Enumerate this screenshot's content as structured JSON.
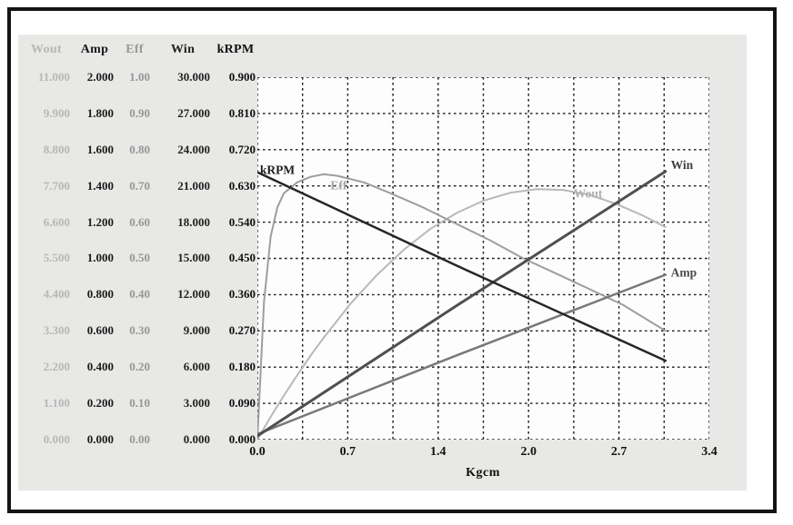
{
  "window": {
    "page_bg": "#ffffff",
    "frame_color": "#141414",
    "panel_bg": "#e8e8e6",
    "plot_bg": "#fdfdfd",
    "grid_color": "#1c1c1c"
  },
  "table": {
    "columns": [
      {
        "label": "Wout",
        "color": "#b7b7b7",
        "values": [
          "11.000",
          "9.900",
          "8.800",
          "7.700",
          "6.600",
          "5.500",
          "4.400",
          "3.300",
          "2.200",
          "1.100",
          "0.000"
        ]
      },
      {
        "label": "Amp",
        "color": "#1b1b1b",
        "values": [
          "2.000",
          "1.800",
          "1.600",
          "1.400",
          "1.200",
          "1.000",
          "0.800",
          "0.600",
          "0.400",
          "0.200",
          "0.000"
        ]
      },
      {
        "label": "Eff",
        "color": "#979797",
        "values": [
          "1.00",
          "0.90",
          "0.80",
          "0.70",
          "0.60",
          "0.50",
          "0.40",
          "0.30",
          "0.20",
          "0.10",
          "0.00"
        ]
      },
      {
        "label": "Win",
        "color": "#222222",
        "values": [
          "30.000",
          "27.000",
          "24.000",
          "21.000",
          "18.000",
          "15.000",
          "12.000",
          "9.000",
          "6.000",
          "3.000",
          "0.000"
        ]
      },
      {
        "label": "kRPM",
        "color": "#101010",
        "values": [
          "0.900",
          "0.810",
          "0.720",
          "0.630",
          "0.540",
          "0.450",
          "0.360",
          "0.270",
          "0.180",
          "0.090",
          "0.000"
        ]
      }
    ]
  },
  "chart_data": {
    "type": "line",
    "title": "",
    "xlabel": "Kgcm",
    "xlim": [
      0,
      3.4
    ],
    "x_ticks": [
      "0.0",
      "0.7",
      "1.4",
      "2.0",
      "2.7",
      "3.4"
    ],
    "grid": "dashed; vertical lines every half major tick, horizontal lines every tenth of axis range",
    "legend_position": "inline-curve-labels",
    "y_axes": [
      {
        "name": "Wout",
        "range": [
          0,
          11.0
        ]
      },
      {
        "name": "Amp",
        "range": [
          0,
          2.0
        ]
      },
      {
        "name": "Eff",
        "range": [
          0,
          1.0
        ]
      },
      {
        "name": "Win",
        "range": [
          0,
          30.0
        ]
      },
      {
        "name": "kRPM",
        "range": [
          0,
          0.9
        ]
      }
    ],
    "series": [
      {
        "name": "Wout",
        "axis_max": 11,
        "color": "#b9b9b9",
        "width": 2,
        "label_color": "#b0b0b0",
        "label_at": [
          2.38,
          7.35
        ],
        "points": [
          [
            0,
            0
          ],
          [
            0.1,
            0.69
          ],
          [
            0.2,
            1.34
          ],
          [
            0.3,
            1.96
          ],
          [
            0.4,
            2.55
          ],
          [
            0.5,
            3.1
          ],
          [
            0.7,
            4.12
          ],
          [
            0.9,
            5.0
          ],
          [
            1.1,
            5.76
          ],
          [
            1.3,
            6.39
          ],
          [
            1.5,
            6.88
          ],
          [
            1.7,
            7.25
          ],
          [
            1.9,
            7.49
          ],
          [
            2.1,
            7.6
          ],
          [
            2.3,
            7.58
          ],
          [
            2.5,
            7.43
          ],
          [
            2.7,
            7.15
          ],
          [
            2.9,
            6.8
          ],
          [
            3.07,
            6.45
          ]
        ]
      },
      {
        "name": "Eff",
        "axis_max": 1,
        "color": "#9e9e9e",
        "width": 2,
        "label_color": "#a6a6a6",
        "label_at": [
          0.55,
          0.69
        ],
        "points": [
          [
            0,
            0
          ],
          [
            0.05,
            0.38
          ],
          [
            0.1,
            0.56
          ],
          [
            0.15,
            0.64
          ],
          [
            0.2,
            0.68
          ],
          [
            0.3,
            0.71
          ],
          [
            0.4,
            0.725
          ],
          [
            0.5,
            0.732
          ],
          [
            0.6,
            0.728
          ],
          [
            0.8,
            0.71
          ],
          [
            1,
            0.68
          ],
          [
            1.25,
            0.64
          ],
          [
            1.5,
            0.595
          ],
          [
            1.75,
            0.55
          ],
          [
            2,
            0.5
          ],
          [
            2.25,
            0.458
          ],
          [
            2.5,
            0.415
          ],
          [
            2.75,
            0.372
          ],
          [
            3.07,
            0.3
          ]
        ]
      },
      {
        "name": "Amp",
        "axis_max": 2,
        "color": "#787878",
        "width": 2.5,
        "label_color": "#4a4a4a",
        "label_at": [
          3.11,
          0.9
        ],
        "points": [
          [
            0,
            0.03
          ],
          [
            1.5,
            0.465
          ],
          [
            3.07,
            0.91
          ]
        ]
      },
      {
        "name": "Win",
        "axis_max": 30,
        "color": "#4f4f4f",
        "width": 3,
        "label_color": "#3f3f3f",
        "label_at": [
          3.11,
          22.4
        ],
        "points": [
          [
            0,
            0.3
          ],
          [
            1.5,
            11.1
          ],
          [
            3.07,
            22.2
          ]
        ]
      },
      {
        "name": "kRPM",
        "axis_max": 0.9,
        "color": "#262626",
        "width": 2.5,
        "label_color": "#1d1d1d",
        "label_at": [
          0.02,
          0.66
        ],
        "points": [
          [
            0,
            0.664
          ],
          [
            1.5,
            0.432
          ],
          [
            3.07,
            0.196
          ]
        ]
      }
    ]
  }
}
